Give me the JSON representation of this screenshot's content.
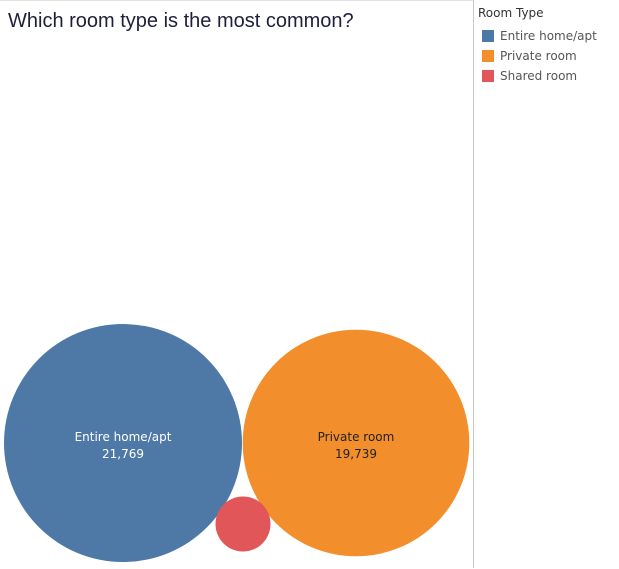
{
  "chart_data": {
    "type": "packed-bubble",
    "title": "Which room type is the most common?",
    "legend_title": "Room Type",
    "legend_position": "top-right",
    "categories": [
      "Entire home/apt",
      "Private room",
      "Shared room"
    ],
    "values": [
      21769,
      19739,
      1160
    ],
    "value_labels": [
      "21,769",
      "19,739",
      ""
    ],
    "colors": [
      "#4e79a7",
      "#f28e2b",
      "#e15759"
    ],
    "label_colors": [
      "#ffffff",
      "#222222",
      "#ffffff"
    ]
  }
}
